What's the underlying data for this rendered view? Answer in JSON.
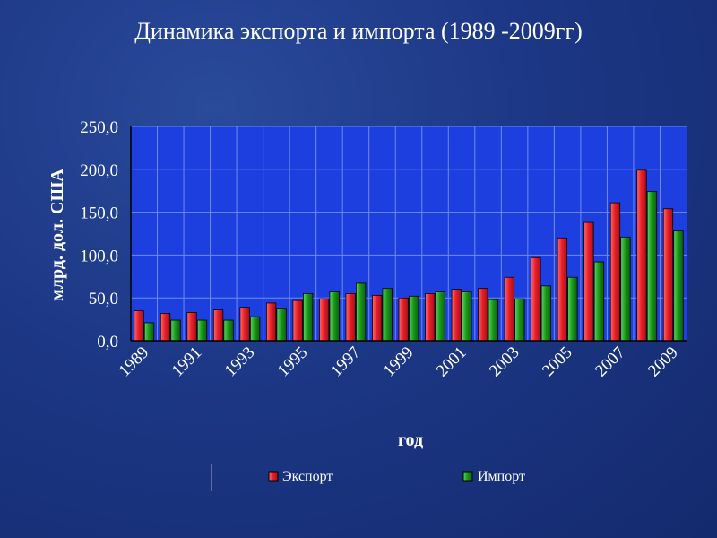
{
  "slide": {
    "title": "Динамика экспорта и импорта (1989 -2009гг)"
  },
  "colors": {
    "export": "#e8202a",
    "import": "#1a9a1a",
    "plot_background": "#1e3fe0",
    "grid": "#6f8af0"
  },
  "chart_data": {
    "type": "bar",
    "categories": [
      "1989",
      "1990",
      "1991",
      "1992",
      "1993",
      "1994",
      "1995",
      "1996",
      "1997",
      "1998",
      "1999",
      "2000",
      "2001",
      "2002",
      "2003",
      "2004",
      "2005",
      "2006",
      "2007",
      "2008",
      "2009"
    ],
    "tick_labels": [
      "0,0",
      "50,0",
      "100,0",
      "150,0",
      "200,0",
      "250,0"
    ],
    "x_tick_labels": [
      "1989",
      "1991",
      "1993",
      "1995",
      "1997",
      "1999",
      "2001",
      "2003",
      "2005",
      "2007",
      "2009"
    ],
    "series": [
      {
        "name": "Экспорт",
        "values": [
          35,
          32,
          33,
          36,
          39,
          44,
          47,
          49,
          55,
          53,
          50,
          55,
          60,
          61,
          74,
          97,
          120,
          138,
          161,
          199,
          154
        ]
      },
      {
        "name": "Импорт",
        "values": [
          21,
          24,
          24,
          24,
          28,
          37,
          55,
          57,
          67,
          61,
          52,
          57,
          57,
          48,
          49,
          64,
          74,
          92,
          121,
          174,
          128
        ]
      }
    ],
    "xlabel": "год",
    "ylabel": "млрд. дол. США",
    "ylim": [
      0,
      250
    ],
    "grid": true,
    "legend_position": "bottom"
  }
}
